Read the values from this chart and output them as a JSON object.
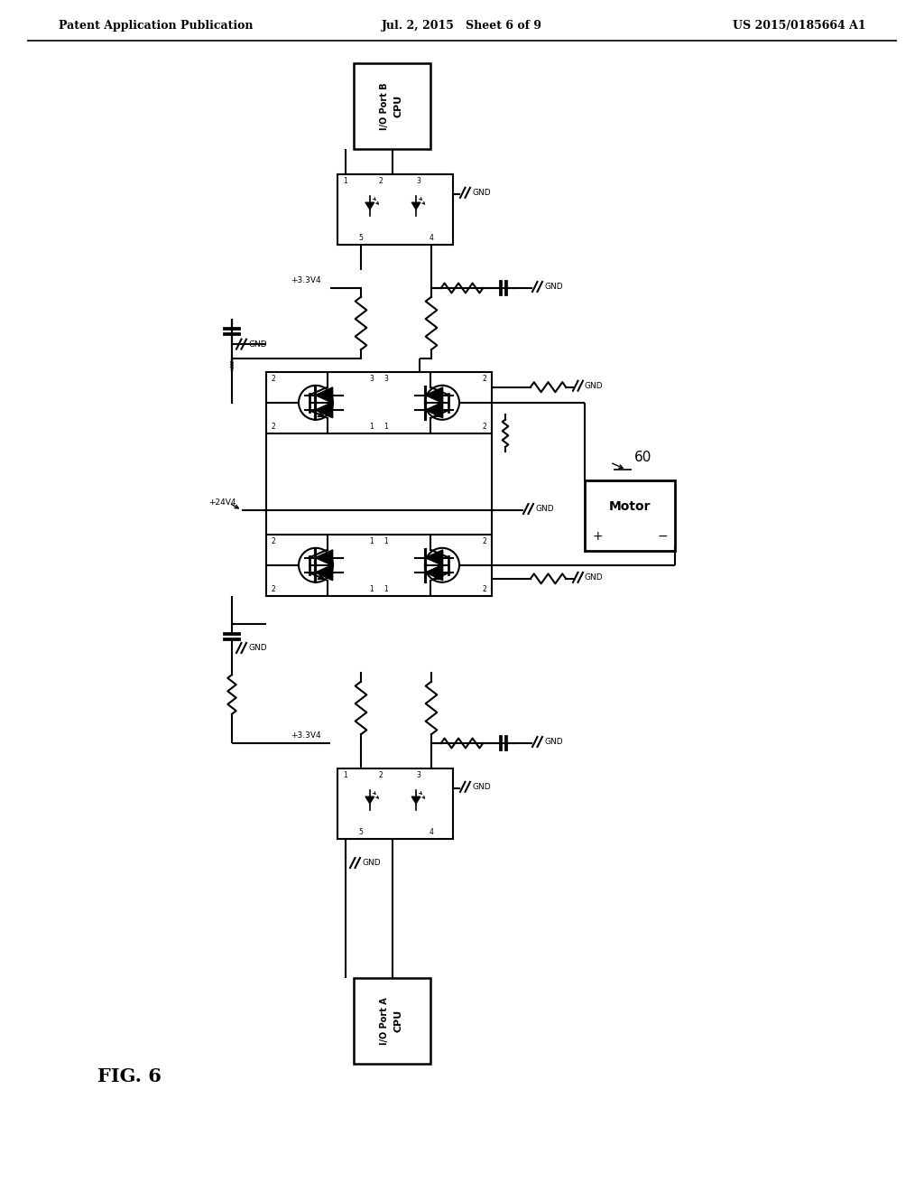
{
  "header_left": "Patent Application Publication",
  "header_center": "Jul. 2, 2015   Sheet 6 of 9",
  "header_right": "US 2015/0185664 A1",
  "fig_label": "FIG. 6",
  "bg_color": "#ffffff",
  "line_color": "#000000"
}
